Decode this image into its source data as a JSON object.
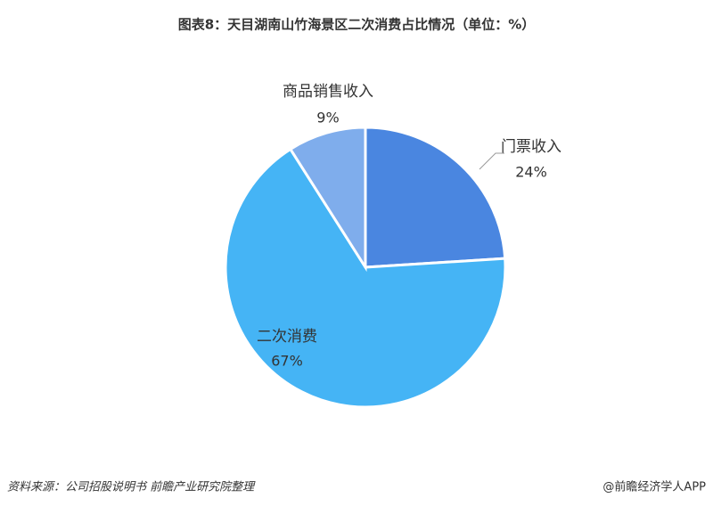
{
  "chart_data": {
    "type": "pie",
    "title": "图表8：天目湖南山竹海景区二次消费占比情况（单位：%）",
    "categories": [
      "门票收入",
      "二次消费",
      "商品销售收入"
    ],
    "values": [
      24,
      67,
      9
    ],
    "value_labels": [
      "24%",
      "67%",
      "9%"
    ],
    "colors": [
      "#4a86e0",
      "#45b4f5",
      "#7fadec"
    ],
    "source": "资料来源：公司招股说明书  前瞻产业研究院整理",
    "credit": "@前瞻经济学人APP"
  }
}
